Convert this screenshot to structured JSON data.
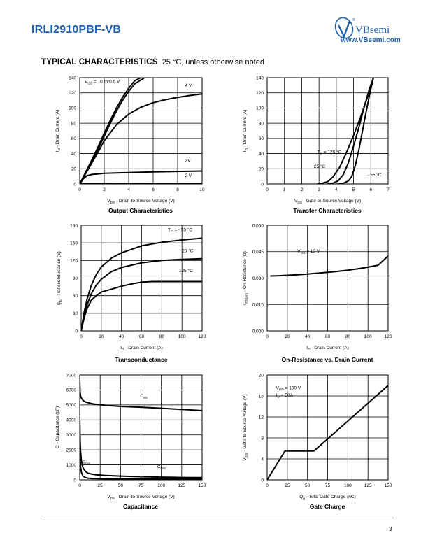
{
  "header": {
    "part_number": "IRLI2910PBF-VB",
    "brand": "VBsemi",
    "website": "www.VBsemi.com",
    "section_title": "TYPICAL CHARACTERISTICS",
    "section_note": "25 °C, unless otherwise noted"
  },
  "footer": {
    "page_number": "3"
  },
  "colors": {
    "brand": "#1f5fb0",
    "curve": "#000000",
    "grid": "#000000"
  },
  "chart_data": [
    {
      "id": "output",
      "type": "line",
      "title": "Output Characteristics",
      "xlabel": "V_DS - Drain-to-Source Voltage (V)",
      "ylabel": "I_D - Drain Current (A)",
      "xlim": [
        0,
        10
      ],
      "ylim": [
        0,
        140
      ],
      "xticks": [
        0,
        2,
        4,
        6,
        8,
        10
      ],
      "yticks": [
        0,
        20,
        40,
        60,
        80,
        100,
        120,
        140
      ],
      "grid": true,
      "series": [
        {
          "name": "V_GS = 10 thru 5 V",
          "x": [
            0,
            0.5,
            1,
            1.5,
            2,
            2.5,
            3,
            3.5,
            4,
            4.5,
            5.3
          ],
          "y": [
            0,
            15,
            30,
            46,
            63,
            80,
            96,
            110,
            122,
            132,
            140
          ]
        },
        {
          "name": "V_GS = 10 thru 5 V",
          "x": [
            0,
            0.5,
            1,
            1.5,
            2,
            2.5,
            3,
            3.5,
            4,
            4.5,
            5.0
          ],
          "y": [
            0,
            16,
            32,
            49,
            67,
            84,
            100,
            114,
            126,
            136,
            140
          ]
        },
        {
          "name": "4 V",
          "x": [
            0,
            0.5,
            1,
            1.5,
            2,
            3,
            4,
            5,
            6,
            7,
            8,
            9,
            10
          ],
          "y": [
            0,
            14,
            28,
            42,
            57,
            78,
            92,
            101,
            107,
            111,
            114,
            116.5,
            118.5
          ]
        },
        {
          "name": "3V",
          "x": [
            0,
            0.3,
            0.6,
            1,
            1.5,
            2,
            3,
            4,
            6,
            8,
            10
          ],
          "y": [
            0,
            7,
            11,
            12.5,
            13.3,
            14,
            14.5,
            15,
            15.8,
            16.5,
            17
          ]
        },
        {
          "name": "2 V",
          "x": [
            0,
            2,
            4,
            6,
            8,
            10
          ],
          "y": [
            0.3,
            0.4,
            0.5,
            0.6,
            0.7,
            0.8
          ]
        }
      ],
      "annotations": [
        {
          "text": "V_GS = 10 thru 5 V",
          "x": 0.4,
          "y": 133
        },
        {
          "text": "4 V",
          "x": 8.6,
          "y": 128
        },
        {
          "text": "3V",
          "x": 8.6,
          "y": 29
        },
        {
          "text": "2 V",
          "x": 8.6,
          "y": 9
        }
      ]
    },
    {
      "id": "transfer",
      "type": "line",
      "title": "Transfer Characteristics",
      "xlabel": "V_GS - Gate-to-Source Voltage (V)",
      "ylabel": "I_D - Drain Current (A)",
      "xlim": [
        0,
        7
      ],
      "ylim": [
        0,
        140
      ],
      "xticks": [
        0,
        1,
        2,
        3,
        4,
        5,
        6,
        7
      ],
      "yticks": [
        0,
        20,
        40,
        60,
        80,
        100,
        120,
        140
      ],
      "grid": true,
      "series": [
        {
          "name": "T_C = 125 °C",
          "x": [
            2.9,
            3.2,
            3.5,
            3.8,
            4.2,
            4.6,
            5.0,
            5.4,
            5.8,
            6.15
          ],
          "y": [
            0,
            1,
            3,
            9,
            22,
            42,
            64,
            88,
            114,
            140
          ]
        },
        {
          "name": "25 °C",
          "x": [
            3.5,
            3.8,
            4.1,
            4.4,
            4.7,
            5.0,
            5.3,
            5.6,
            5.9,
            6.15
          ],
          "y": [
            0,
            1,
            4,
            12,
            28,
            50,
            74,
            100,
            124,
            140
          ]
        },
        {
          "name": "- 55 °C",
          "x": [
            4.1,
            4.4,
            4.7,
            4.9,
            5.1,
            5.3,
            5.5,
            5.7,
            5.95,
            6.15
          ],
          "y": [
            0,
            1,
            4,
            10,
            24,
            44,
            68,
            92,
            120,
            140
          ]
        }
      ],
      "annotations": [
        {
          "text": "T_C = 125 °C",
          "x": 2.9,
          "y": 40
        },
        {
          "text": "25 °C",
          "x": 2.7,
          "y": 21
        },
        {
          "text": "- 55 °C",
          "x": 5.8,
          "y": 10
        }
      ]
    },
    {
      "id": "transconductance",
      "type": "line",
      "title": "Transconductance",
      "xlabel": "I_D - Drain Current (A)",
      "ylabel": "g_fs - Transconductance (S)",
      "xlim": [
        0,
        120
      ],
      "ylim": [
        0,
        180
      ],
      "xticks": [
        0,
        20,
        40,
        60,
        80,
        100,
        120
      ],
      "yticks": [
        0,
        30,
        60,
        90,
        120,
        150,
        180
      ],
      "grid": true,
      "series": [
        {
          "name": "T_C = - 55 °C",
          "x": [
            0,
            3,
            6,
            10,
            15,
            20,
            30,
            40,
            60,
            80,
            100,
            120
          ],
          "y": [
            0,
            32,
            55,
            77,
            96,
            109,
            124,
            133,
            145,
            151,
            155,
            158
          ]
        },
        {
          "name": "25 °C",
          "x": [
            0,
            3,
            6,
            10,
            15,
            20,
            30,
            40,
            60,
            80,
            100,
            120
          ],
          "y": [
            0,
            26,
            45,
            63,
            78,
            88,
            101,
            108,
            116,
            120,
            122,
            123
          ]
        },
        {
          "name": "125 °C",
          "x": [
            0,
            3,
            6,
            10,
            15,
            20,
            30,
            40,
            50,
            60,
            70,
            80,
            100,
            120
          ],
          "y": [
            0,
            22,
            38,
            52,
            60,
            66,
            71,
            76,
            80,
            83,
            84,
            84,
            84,
            84
          ]
        }
      ],
      "annotations": [
        {
          "text": "T_C = - 55 °C",
          "x": 86,
          "y": 170
        },
        {
          "text": "25 °C",
          "x": 100,
          "y": 134
        },
        {
          "text": "125 °C",
          "x": 97,
          "y": 100
        }
      ]
    },
    {
      "id": "on_resistance",
      "type": "line",
      "title": "On-Resistance vs. Drain Current",
      "xlabel": "I_D - Drain Current (A)",
      "ylabel": "r_DS(on) - On-Resistance (Ω)",
      "xlim": [
        0,
        120
      ],
      "ylim": [
        0,
        0.06
      ],
      "xticks": [
        0,
        20,
        40,
        60,
        80,
        100,
        120
      ],
      "yticks": [
        "0.000",
        "0.015",
        "0.030",
        "0.045",
        "0.060"
      ],
      "grid": true,
      "series": [
        {
          "name": "V_GS = 10 V",
          "x": [
            3,
            10,
            20,
            30,
            40,
            50,
            60,
            70,
            80,
            90,
            100,
            110,
            120
          ],
          "y": [
            0.0312,
            0.0313,
            0.0316,
            0.0319,
            0.0323,
            0.0328,
            0.0333,
            0.0338,
            0.0345,
            0.0353,
            0.0362,
            0.0373,
            0.0425
          ]
        }
      ],
      "annotations": [
        {
          "text": "V_GS = 10 V",
          "x": 30,
          "y": 0.0445
        }
      ]
    },
    {
      "id": "capacitance",
      "type": "line",
      "title": "Capacitance",
      "xlabel": "V_DS - Drain-to-Source Voltage (V)",
      "ylabel": "C - Capacitance (pF)",
      "xlim": [
        0,
        150
      ],
      "ylim": [
        0,
        7000
      ],
      "xticks": [
        0,
        25,
        50,
        75,
        100,
        125,
        150
      ],
      "yticks": [
        0,
        1000,
        2000,
        3000,
        4000,
        5000,
        6000,
        7000
      ],
      "grid": true,
      "series": [
        {
          "name": "C_iss",
          "x": [
            0,
            0.5,
            1,
            2,
            4,
            7,
            10,
            15,
            20,
            30,
            50,
            75,
            100,
            125,
            150
          ],
          "y": [
            6600,
            5800,
            5600,
            5450,
            5300,
            5200,
            5150,
            5080,
            5040,
            4980,
            4900,
            4850,
            4780,
            4700,
            4620
          ]
        },
        {
          "name": "C_oss",
          "x": [
            0,
            0.5,
            1,
            2,
            4,
            7,
            10,
            15,
            20,
            30,
            50,
            75,
            100,
            125,
            150
          ],
          "y": [
            4200,
            2600,
            1900,
            1300,
            800,
            550,
            450,
            380,
            340,
            300,
            250,
            210,
            180,
            160,
            150
          ]
        },
        {
          "name": "C_rss",
          "x": [
            0,
            0.5,
            1,
            2,
            4,
            7,
            10,
            15,
            20,
            30,
            50,
            75,
            100,
            125,
            150
          ],
          "y": [
            3000,
            1500,
            900,
            500,
            250,
            150,
            110,
            90,
            80,
            70,
            60,
            55,
            50,
            48,
            45
          ]
        }
      ],
      "annotations": [
        {
          "text": "C_iss",
          "x": 74,
          "y": 5500
        },
        {
          "text": "C_rss",
          "x": 3,
          "y": 1100
        },
        {
          "text": "C_oss",
          "x": 95,
          "y": 800
        }
      ]
    },
    {
      "id": "gate_charge",
      "type": "line",
      "title": "Gate Charge",
      "xlabel": "Q_g - Total Gate Charge (nC)",
      "ylabel": "V_GS - Gate-to-Source Voltage (V)",
      "xlim": [
        0,
        150
      ],
      "ylim": [
        0,
        20
      ],
      "xticks": [
        0,
        25,
        50,
        75,
        100,
        125,
        150
      ],
      "yticks": [
        0,
        4,
        8,
        12,
        16,
        20
      ],
      "grid": true,
      "series": [
        {
          "name": "V_DD = 100 V, I_D = 50A",
          "x": [
            0,
            22,
            58,
            150
          ],
          "y": [
            0,
            5.5,
            5.5,
            18
          ]
        }
      ],
      "annotations": [
        {
          "text": "V_DD = 100 V",
          "x": 11,
          "y": 17.3
        },
        {
          "text": "I_D = 50A",
          "x": 11,
          "y": 15.9
        }
      ]
    }
  ]
}
